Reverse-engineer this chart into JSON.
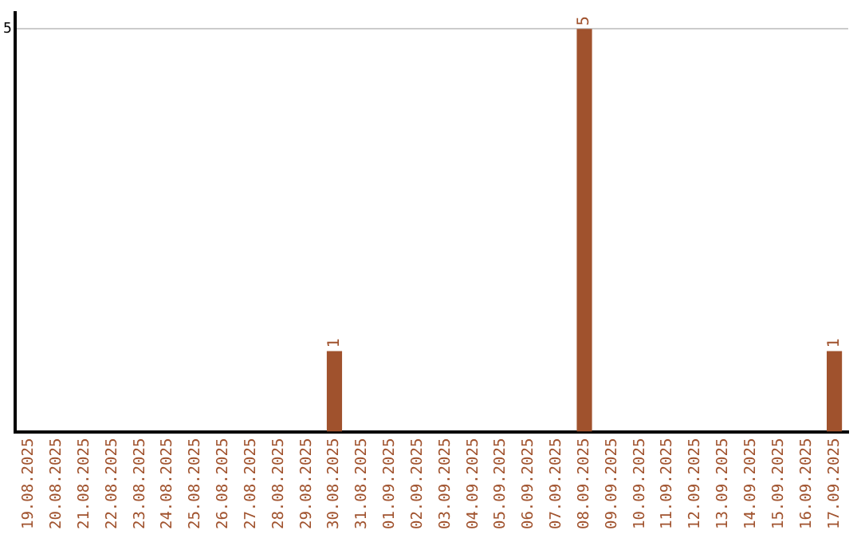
{
  "chart_data": {
    "type": "bar",
    "categories": [
      "19.08.2025",
      "20.08.2025",
      "21.08.2025",
      "22.08.2025",
      "23.08.2025",
      "24.08.2025",
      "25.08.2025",
      "26.08.2025",
      "27.08.2025",
      "28.08.2025",
      "29.08.2025",
      "30.08.2025",
      "31.08.2025",
      "01.09.2025",
      "02.09.2025",
      "03.09.2025",
      "04.09.2025",
      "05.09.2025",
      "06.09.2025",
      "07.09.2025",
      "08.09.2025",
      "09.09.2025",
      "10.09.2025",
      "11.09.2025",
      "12.09.2025",
      "13.09.2025",
      "14.09.2025",
      "15.09.2025",
      "16.09.2025",
      "17.09.2025"
    ],
    "values": [
      0,
      0,
      0,
      0,
      0,
      0,
      0,
      0,
      0,
      0,
      0,
      1,
      0,
      0,
      0,
      0,
      0,
      0,
      0,
      0,
      5,
      0,
      0,
      0,
      0,
      0,
      0,
      0,
      0,
      1
    ],
    "value_labels": [
      null,
      null,
      null,
      null,
      null,
      null,
      null,
      null,
      null,
      null,
      null,
      "1",
      null,
      null,
      null,
      null,
      null,
      null,
      null,
      null,
      "5",
      null,
      null,
      null,
      null,
      null,
      null,
      null,
      null,
      "1"
    ],
    "color": "#a0522d",
    "ylim": [
      0,
      5.2
    ],
    "yticks": [
      5
    ],
    "grid": "y",
    "legend": false
  }
}
